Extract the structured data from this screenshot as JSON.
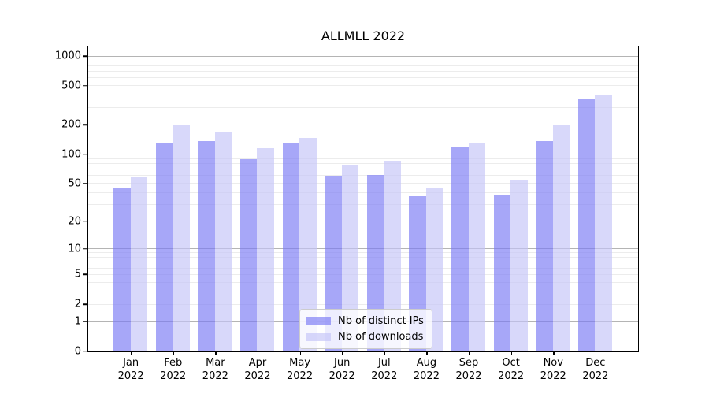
{
  "chart_data": {
    "type": "bar",
    "title": "ALLMLL 2022",
    "categories": [
      "Jan 2022",
      "Feb 2022",
      "Mar 2022",
      "Apr 2022",
      "May 2022",
      "Jun 2022",
      "Jul 2022",
      "Aug 2022",
      "Sep 2022",
      "Oct 2022",
      "Nov 2022",
      "Dec 2022"
    ],
    "series": [
      {
        "name": "Nb of distinct IPs",
        "color": "rgba(121,121,244,0.66)",
        "values": [
          45,
          131,
          137,
          89,
          132,
          60,
          62,
          37,
          121,
          38,
          138,
          370
        ]
      },
      {
        "name": "Nb of downloads",
        "color": "rgba(196,196,247,0.66)",
        "values": [
          58,
          202,
          171,
          116,
          147,
          77,
          87,
          45,
          132,
          54,
          204,
          400
        ]
      }
    ],
    "xlabel": "",
    "ylabel": "",
    "yticks": [
      0,
      1,
      2,
      5,
      10,
      20,
      50,
      100,
      200,
      500,
      1000
    ],
    "scale": "log1p",
    "ylim": [
      0,
      1245
    ],
    "grid": "horizontal major and minor",
    "gridline_major_values": [
      1,
      10,
      100,
      1000
    ],
    "legend_position": "lower center",
    "colors": {
      "bar_dark": "rgba(121,121,244,0.66)",
      "bar_light": "rgba(196,196,247,0.66)",
      "grid_major": "#b4b4b4",
      "grid_minor": "#ececec",
      "spine": "#000000",
      "background": "#ffffff"
    }
  }
}
